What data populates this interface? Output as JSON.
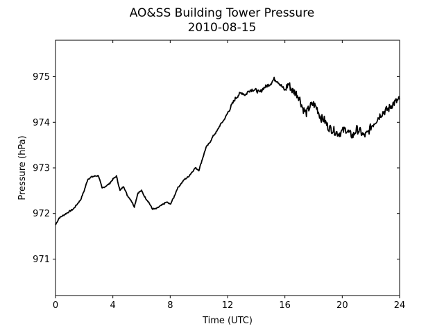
{
  "chart_data": {
    "type": "line",
    "title": "AO&SS Building Tower Pressure",
    "subtitle": "2010-08-15",
    "xlabel": "Time (UTC)",
    "ylabel": "Pressure (hPa)",
    "xlim": [
      0,
      24
    ],
    "ylim": [
      970.2,
      975.8
    ],
    "xticks": [
      0,
      4,
      8,
      12,
      16,
      20,
      24
    ],
    "yticks": [
      971,
      972,
      973,
      974,
      975
    ],
    "grid": false,
    "series_color": "#000000",
    "x": [
      0.0,
      0.25,
      0.5,
      0.75,
      1.0,
      1.25,
      1.5,
      1.75,
      2.0,
      2.25,
      2.5,
      2.75,
      3.0,
      3.25,
      3.5,
      3.75,
      4.0,
      4.25,
      4.5,
      4.75,
      5.0,
      5.25,
      5.5,
      5.75,
      6.0,
      6.25,
      6.5,
      6.75,
      7.0,
      7.25,
      7.5,
      7.75,
      8.0,
      8.25,
      8.5,
      8.75,
      9.0,
      9.25,
      9.5,
      9.75,
      10.0,
      10.25,
      10.5,
      10.75,
      11.0,
      11.25,
      11.5,
      11.75,
      12.0,
      12.25,
      12.5,
      12.75,
      13.0,
      13.25,
      13.5,
      13.75,
      14.0,
      14.25,
      14.5,
      14.75,
      15.0,
      15.25,
      15.5,
      15.75,
      16.0,
      16.25,
      16.5,
      16.75,
      17.0,
      17.25,
      17.5,
      17.75,
      18.0,
      18.25,
      18.5,
      18.75,
      19.0,
      19.25,
      19.5,
      19.75,
      20.0,
      20.25,
      20.5,
      20.75,
      21.0,
      21.25,
      21.5,
      21.75,
      22.0,
      22.25,
      22.5,
      22.75,
      23.0,
      23.25,
      23.5,
      23.75,
      24.0
    ],
    "values": [
      971.75,
      971.9,
      971.95,
      972.0,
      972.05,
      972.1,
      972.2,
      972.3,
      972.5,
      972.75,
      972.8,
      972.82,
      972.83,
      972.55,
      972.6,
      972.65,
      972.75,
      972.82,
      972.5,
      972.6,
      972.4,
      972.3,
      972.15,
      972.45,
      972.5,
      972.35,
      972.25,
      972.1,
      972.1,
      972.15,
      972.2,
      972.25,
      972.2,
      972.35,
      972.55,
      972.65,
      972.75,
      972.8,
      972.9,
      973.0,
      972.95,
      973.2,
      973.45,
      973.55,
      973.7,
      973.8,
      973.95,
      974.05,
      974.2,
      974.35,
      974.5,
      974.6,
      974.65,
      974.6,
      974.7,
      974.72,
      974.7,
      974.65,
      974.75,
      974.8,
      974.85,
      974.95,
      974.9,
      974.8,
      974.7,
      974.85,
      974.7,
      974.65,
      974.55,
      974.3,
      974.2,
      974.35,
      974.4,
      974.3,
      974.1,
      974.05,
      973.9,
      973.85,
      973.8,
      973.75,
      973.8,
      973.85,
      973.75,
      973.7,
      973.85,
      973.8,
      973.7,
      973.75,
      973.9,
      974.0,
      974.1,
      974.2,
      974.25,
      974.3,
      974.4,
      974.45,
      974.5
    ]
  }
}
